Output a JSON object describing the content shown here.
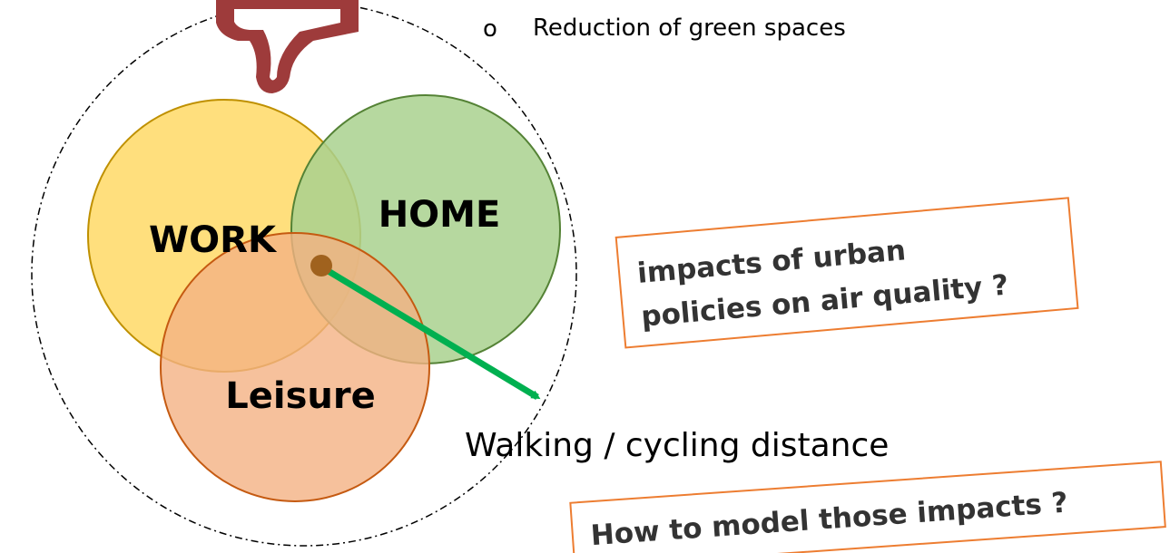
{
  "bullet": {
    "marker": "o",
    "text": "Reduction of green spaces"
  },
  "circles": [
    {
      "label": "WORK"
    },
    {
      "label": "HOME"
    },
    {
      "label": "Leisure"
    }
  ],
  "arrow_label": "Walking / cycling distance",
  "question_1": {
    "lines": [
      "impacts of urban",
      "policies on air quality ?"
    ]
  },
  "question_2": {
    "text": "How to model those impacts ?"
  }
}
